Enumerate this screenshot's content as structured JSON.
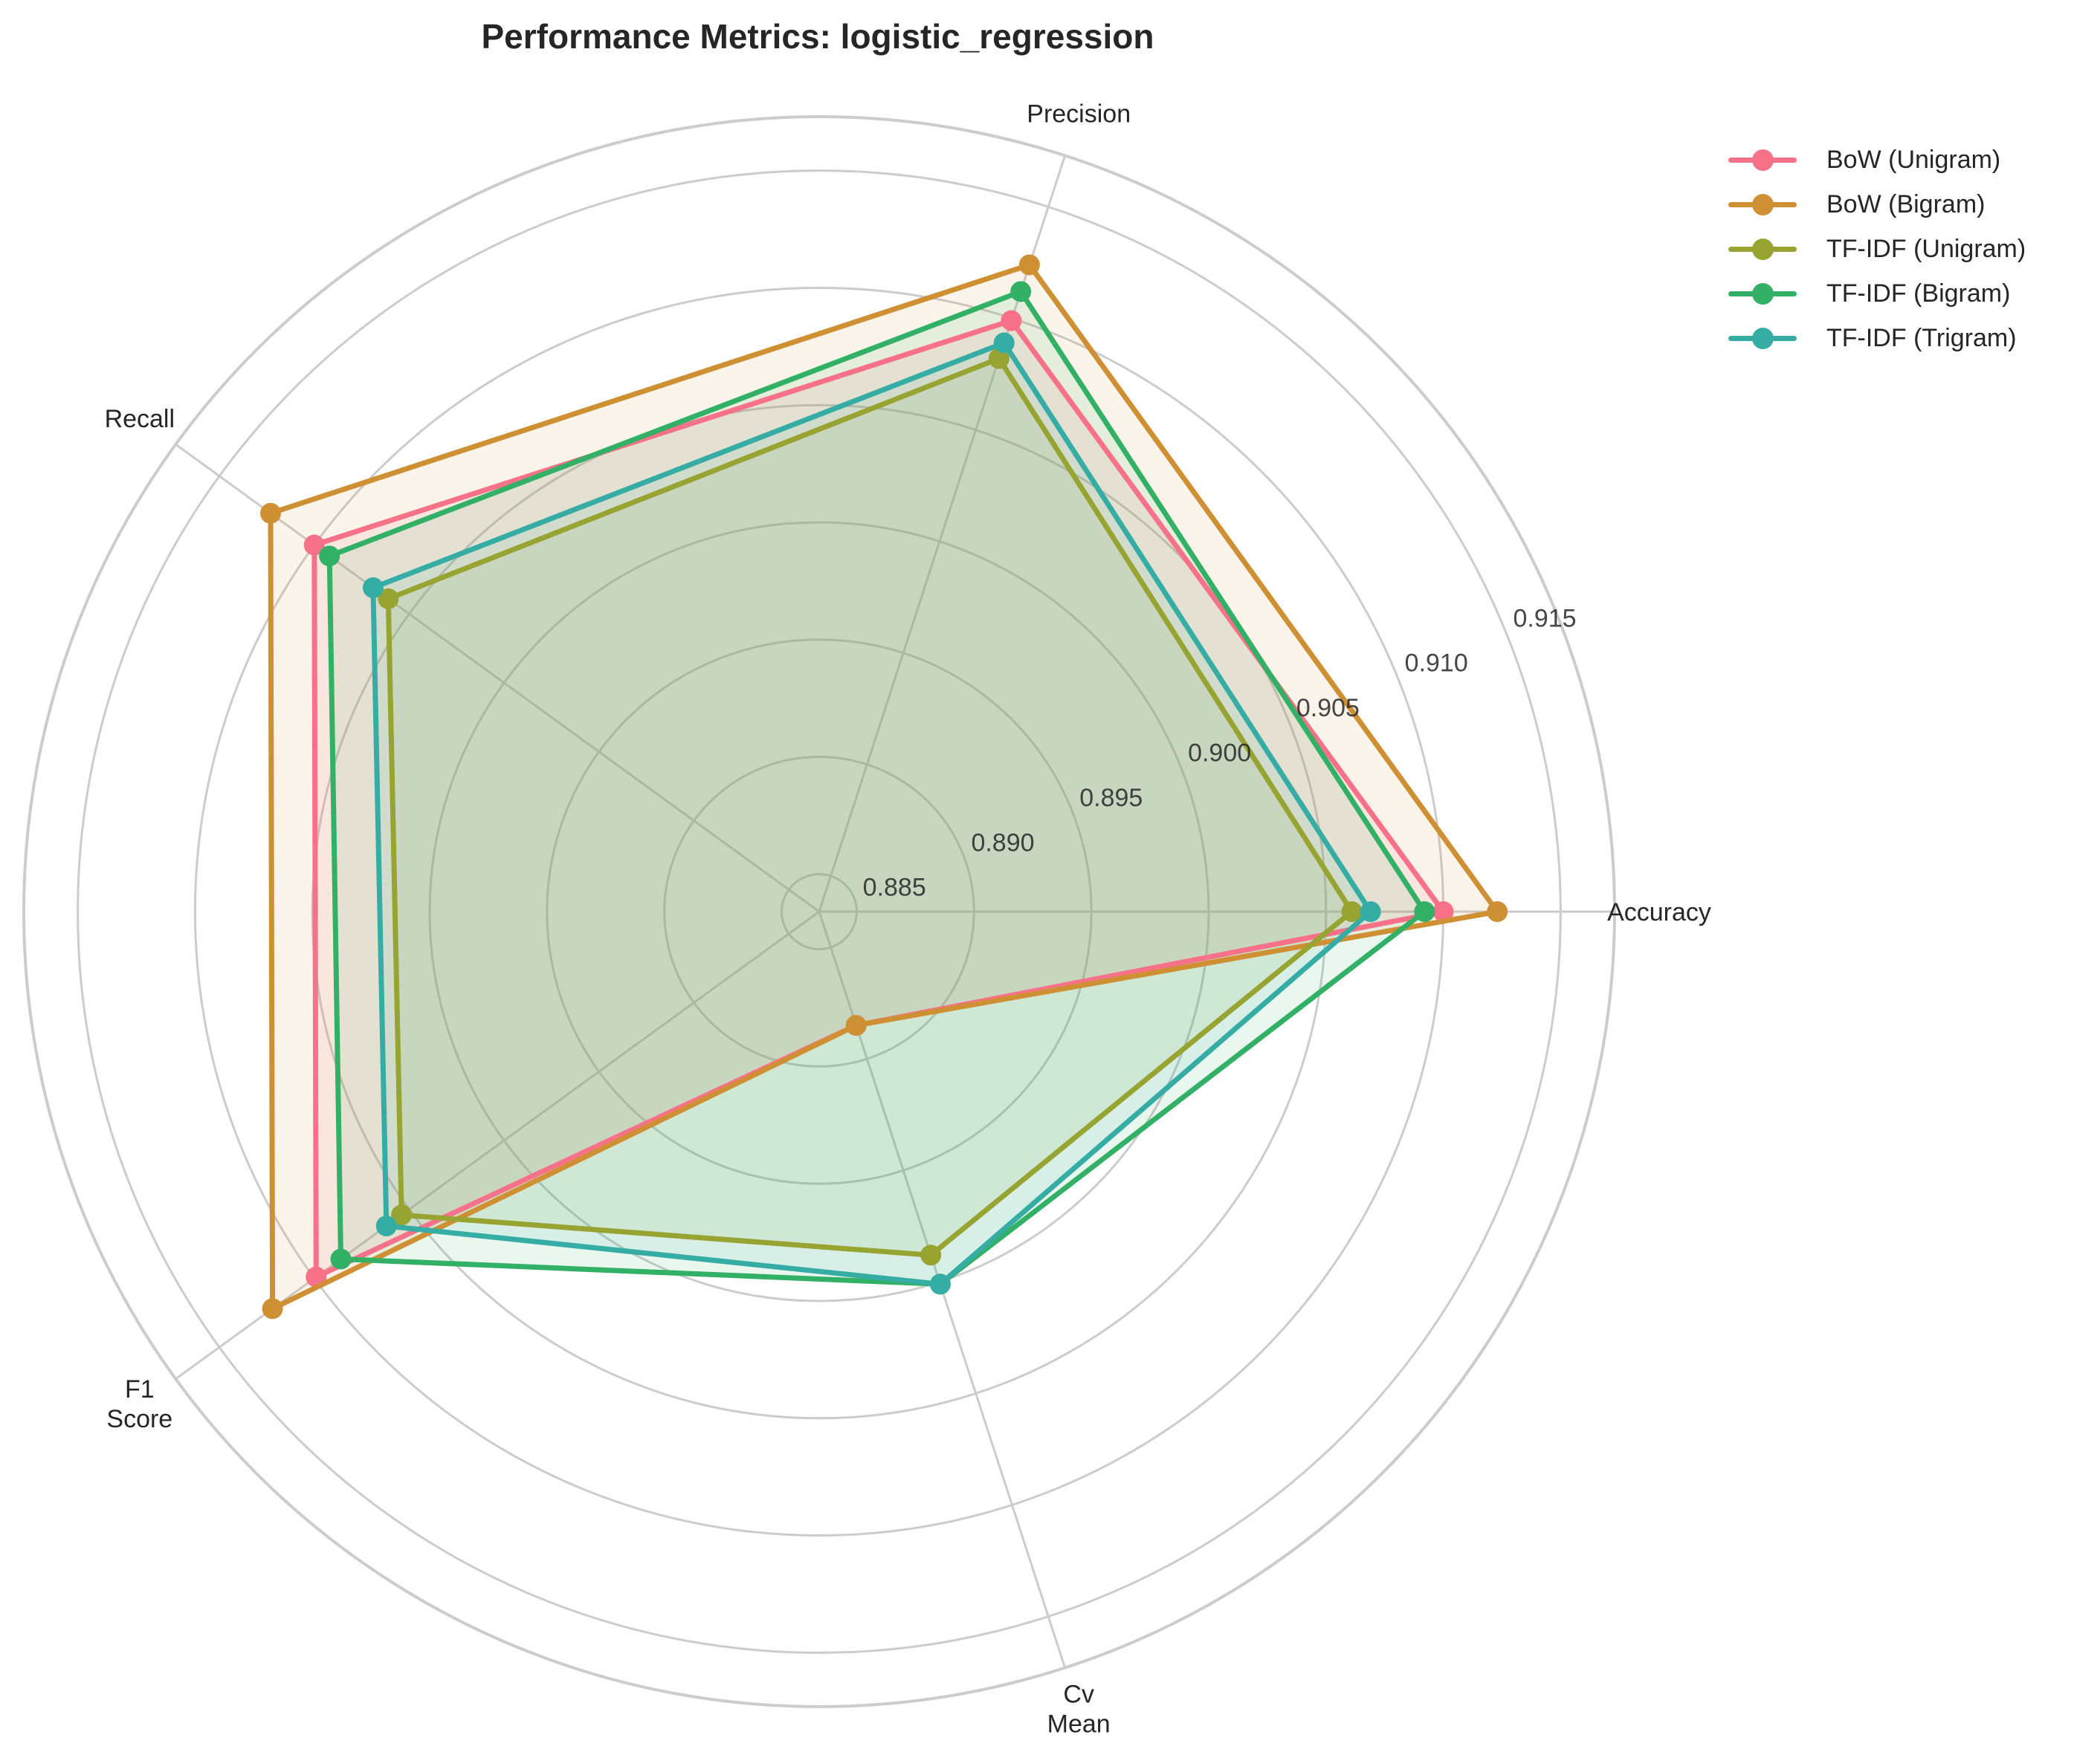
{
  "chart_data": {
    "type": "radar",
    "title": "Performance Metrics: logistic_regression",
    "categories": [
      "Accuracy",
      "Precision",
      "Recall",
      "F1\nScore",
      "Cv\nMean"
    ],
    "category_labels": [
      [
        "Accuracy"
      ],
      [
        "Precision"
      ],
      [
        "Recall"
      ],
      [
        "F1",
        "Score"
      ],
      [
        "Cv",
        "Mean"
      ]
    ],
    "rlim": [
      0.8834,
      0.9173
    ],
    "rticks": [
      0.885,
      0.89,
      0.895,
      0.9,
      0.905,
      0.91,
      0.915
    ],
    "rtick_labels": [
      "0.885",
      "0.890",
      "0.895",
      "0.900",
      "0.905",
      "0.910",
      "0.915"
    ],
    "grid": true,
    "legend_position": "upper right, outside plot",
    "series": [
      {
        "name": "BoW (Unigram)",
        "color": "#f77189",
        "values": [
          0.91,
          0.9099,
          0.91,
          0.9099,
          0.8885
        ]
      },
      {
        "name": "BoW (Bigram)",
        "color": "#ce9032",
        "values": [
          0.9123,
          0.9124,
          0.9123,
          0.9122,
          0.8885
        ]
      },
      {
        "name": "TF-IDF (Unigram)",
        "color": "#97a431",
        "values": [
          0.9061,
          0.9082,
          0.9061,
          0.9054,
          0.8988
        ]
      },
      {
        "name": "TF-IDF (Bigram)",
        "color": "#32b166",
        "values": [
          0.9092,
          0.9112,
          0.9092,
          0.9086,
          0.9001
        ]
      },
      {
        "name": "TF-IDF (Trigram)",
        "color": "#36ada4",
        "values": [
          0.9069,
          0.9089,
          0.9069,
          0.9062,
          0.9001
        ]
      }
    ]
  },
  "legend": {
    "items": [
      {
        "label": "BoW (Unigram)",
        "color": "#f77189"
      },
      {
        "label": "BoW (Bigram)",
        "color": "#ce9032"
      },
      {
        "label": "TF-IDF (Unigram)",
        "color": "#97a431"
      },
      {
        "label": "TF-IDF (Bigram)",
        "color": "#32b166"
      },
      {
        "label": "TF-IDF (Trigram)",
        "color": "#36ada4"
      }
    ]
  }
}
